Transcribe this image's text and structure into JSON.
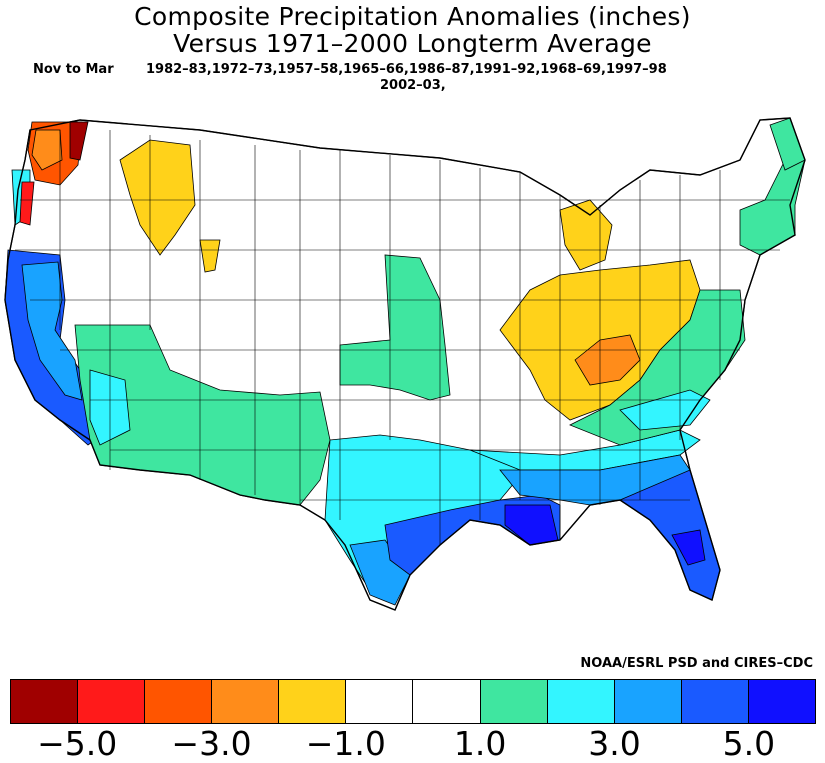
{
  "title_line1": "Composite Precipitation Anomalies (inches)",
  "title_line2": "Versus 1971–2000 Longterm Average",
  "period": "Nov to Mar",
  "years_line1": "1982–83,1972–73,1957–58,1965–66,1986–87,1991–92,1968–69,1997–98",
  "years_line2": "2002–03,",
  "credit": "NOAA/ESRL PSD and CIRES–CDC",
  "legend": {
    "colors": [
      "#a00000",
      "#ff1a1a",
      "#ff5500",
      "#ff8c1a",
      "#ffd21a",
      "#ffffff",
      "#ffffff",
      "#3fe6a0",
      "#33f5ff",
      "#19a3ff",
      "#1a5aff",
      "#1010ff"
    ],
    "labels": [
      "-5.0",
      "-3.0",
      "-1.0",
      "1.0",
      "3.0",
      "5.0"
    ]
  },
  "regions": [
    {
      "name": "pacific-northwest-coast",
      "anomaly": "-4 to -2",
      "color": "#ff8c1a"
    },
    {
      "name": "northern-idaho",
      "anomaly": "-2 to -1",
      "color": "#ffd21a"
    },
    {
      "name": "ohio-valley",
      "anomaly": "-2 to -1",
      "color": "#ffd21a"
    },
    {
      "name": "kentucky-core",
      "anomaly": "-3 to -2",
      "color": "#ff8c1a"
    },
    {
      "name": "michigan",
      "anomaly": "-2 to -1",
      "color": "#ffd21a"
    },
    {
      "name": "california-coast",
      "anomaly": "4 to 5",
      "color": "#1a5aff"
    },
    {
      "name": "southwest-desert",
      "anomaly": "1 to 2",
      "color": "#3fe6a0"
    },
    {
      "name": "central-plains",
      "anomaly": "1 to 2",
      "color": "#3fe6a0"
    },
    {
      "name": "texas",
      "anomaly": "2 to 3",
      "color": "#33f5ff"
    },
    {
      "name": "gulf-coast",
      "anomaly": "3 to 5",
      "color": "#1a5aff"
    },
    {
      "name": "florida",
      "anomaly": "4 to 5",
      "color": "#1a5aff"
    },
    {
      "name": "east-coast",
      "anomaly": "1 to 2",
      "color": "#3fe6a0"
    },
    {
      "name": "new-england",
      "anomaly": "1 to 2",
      "color": "#3fe6a0"
    }
  ]
}
